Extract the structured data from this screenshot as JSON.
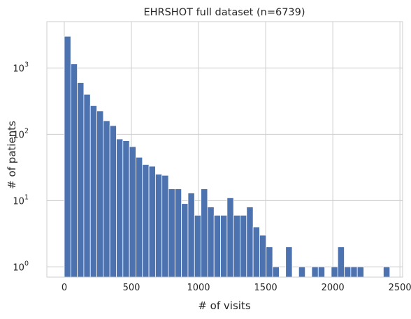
{
  "chart_data": {
    "type": "bar",
    "title": "EHRSHOT full dataset (n=6739)",
    "xlabel": "# of visits",
    "ylabel": "# of patients",
    "yscale": "log",
    "xlim": [
      -130,
      2520
    ],
    "ylim": [
      0.7,
      5000
    ],
    "xticks": [
      "0",
      "500",
      "1000",
      "1500",
      "2000",
      "2500"
    ],
    "yticks": [
      "10^0",
      "10^1",
      "10^2",
      "10^3"
    ],
    "grid": true,
    "bar_color": "#4c72b0",
    "bin_width": 48.5,
    "bin_starts": [
      0,
      48.5,
      97,
      145.5,
      194,
      242.5,
      291,
      339.5,
      388,
      436.5,
      485,
      533.5,
      582,
      630.5,
      679,
      727.5,
      776,
      824.5,
      873,
      921.5,
      970,
      1018.5,
      1067,
      1115.5,
      1164,
      1212.5,
      1261,
      1309.5,
      1358,
      1406.5,
      1455,
      1503.5,
      1552,
      1600.5,
      1649,
      1697.5,
      1746,
      1794.5,
      1843,
      1891.5,
      1940,
      1988.5,
      2037,
      2085.5,
      2134,
      2182.5,
      2231,
      2279.5,
      2328,
      2376.5
    ],
    "values": [
      3000,
      1150,
      600,
      400,
      270,
      225,
      160,
      135,
      85,
      80,
      65,
      45,
      35,
      33,
      25,
      24,
      15,
      15,
      9,
      13,
      6,
      15,
      8,
      6,
      6,
      11,
      6,
      6,
      8,
      4,
      3,
      2,
      1,
      0,
      2,
      0,
      1,
      0,
      1,
      1,
      0,
      1,
      2,
      1,
      1,
      1,
      0,
      0,
      0,
      1
    ]
  }
}
